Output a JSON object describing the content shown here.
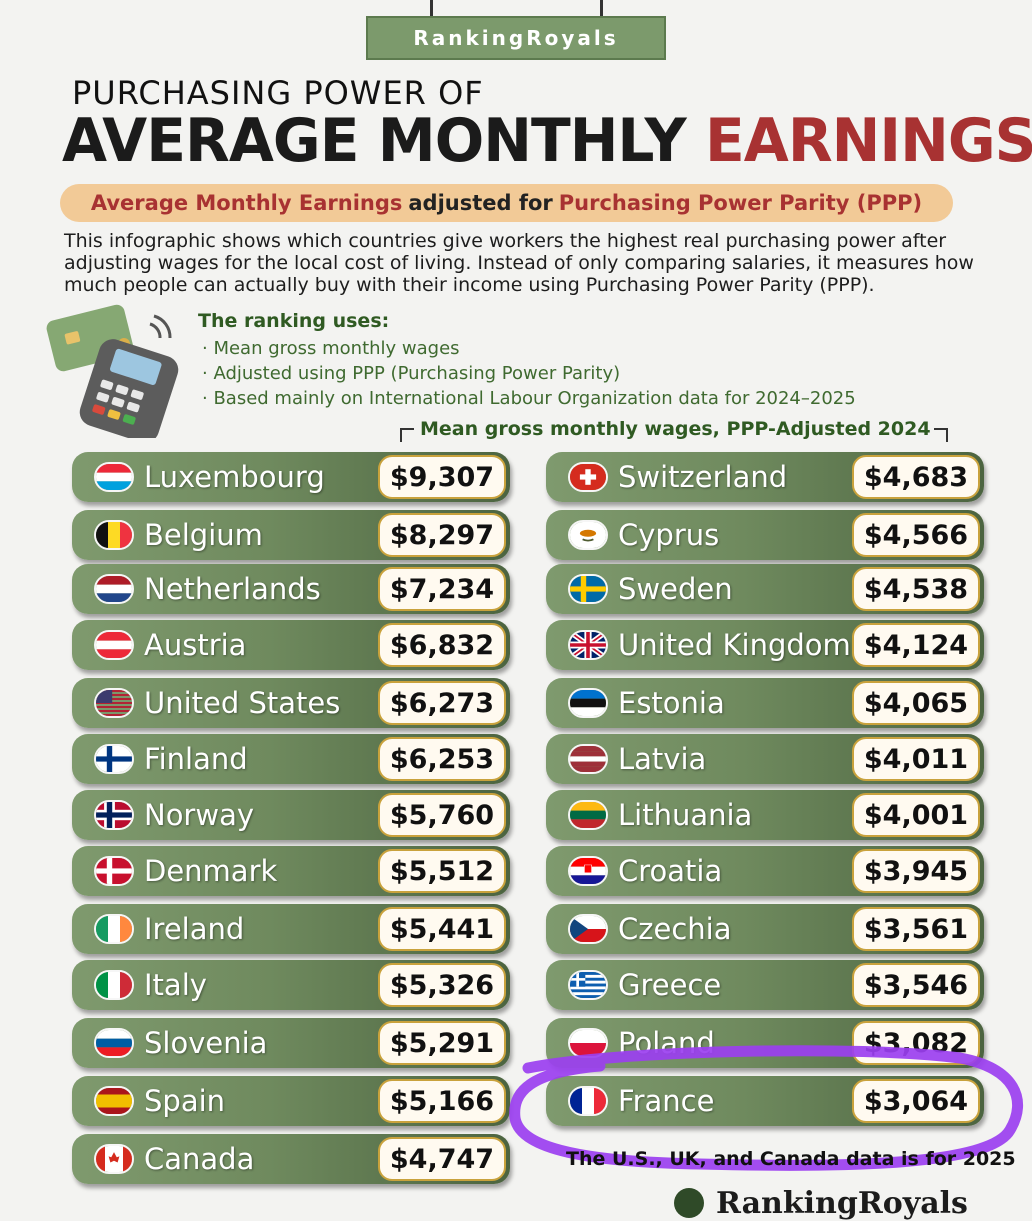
{
  "brand": "RankingRoyals",
  "kicker": "PURCHASING POWER OF",
  "title": {
    "part1": "AVERAGE MONTHLY",
    "part2": "EARNINGS"
  },
  "subtitle": {
    "a": "Average Monthly Earnings",
    "b": "adjusted for",
    "c": "Purchasing Power Parity (PPP)"
  },
  "description": "This infographic shows which countries give workers the highest real purchasing power after adjusting wages for the local cost of living. Instead of only comparing salaries, it measures how much people can actually buy with their income using Purchasing Power Parity (PPP).",
  "uses": {
    "heading": "The ranking uses:",
    "items": [
      "· Mean gross monthly wages",
      "· Adjusted using PPP (Purchasing Power Parity)",
      "· Based mainly on International Labour Organization data for 2024–2025"
    ]
  },
  "footnote": "The U.S., UK, and Canada data is for 2025",
  "footer_brand": "RankingRoyals",
  "colors": {
    "accent_green": "#7c9a6c",
    "title_red": "#a83232",
    "highlight_purple": "#9b3ff0"
  },
  "chart_data": {
    "type": "table",
    "title": "Mean gross monthly wages, PPP-Adjusted 2024",
    "highlighted": "France",
    "rows": [
      {
        "country": "Luxembourg",
        "value": 9307,
        "label": "$9,307",
        "flag": "luxembourg-flag-icon"
      },
      {
        "country": "Belgium",
        "value": 8297,
        "label": "$8,297",
        "flag": "belgium-flag-icon"
      },
      {
        "country": "Netherlands",
        "value": 7234,
        "label": "$7,234",
        "flag": "netherlands-flag-icon"
      },
      {
        "country": "Austria",
        "value": 6832,
        "label": "$6,832",
        "flag": "austria-flag-icon"
      },
      {
        "country": "United States",
        "value": 6273,
        "label": "$6,273",
        "flag": "united-states-flag-icon"
      },
      {
        "country": "Finland",
        "value": 6253,
        "label": "$6,253",
        "flag": "finland-flag-icon"
      },
      {
        "country": "Norway",
        "value": 5760,
        "label": "$5,760",
        "flag": "norway-flag-icon"
      },
      {
        "country": "Denmark",
        "value": 5512,
        "label": "$5,512",
        "flag": "denmark-flag-icon"
      },
      {
        "country": "Ireland",
        "value": 5441,
        "label": "$5,441",
        "flag": "ireland-flag-icon"
      },
      {
        "country": "Italy",
        "value": 5326,
        "label": "$5,326",
        "flag": "italy-flag-icon"
      },
      {
        "country": "Slovenia",
        "value": 5291,
        "label": "$5,291",
        "flag": "slovenia-flag-icon"
      },
      {
        "country": "Spain",
        "value": 5166,
        "label": "$5,166",
        "flag": "spain-flag-icon"
      },
      {
        "country": "Canada",
        "value": 4747,
        "label": "$4,747",
        "flag": "canada-flag-icon"
      },
      {
        "country": "Switzerland",
        "value": 4683,
        "label": "$4,683",
        "flag": "switzerland-flag-icon"
      },
      {
        "country": "Cyprus",
        "value": 4566,
        "label": "$4,566",
        "flag": "cyprus-flag-icon"
      },
      {
        "country": "Sweden",
        "value": 4538,
        "label": "$4,538",
        "flag": "sweden-flag-icon"
      },
      {
        "country": "United Kingdom",
        "value": 4124,
        "label": "$4,124",
        "flag": "united-kingdom-flag-icon"
      },
      {
        "country": "Estonia",
        "value": 4065,
        "label": "$4,065",
        "flag": "estonia-flag-icon"
      },
      {
        "country": "Latvia",
        "value": 4011,
        "label": "$4,011",
        "flag": "latvia-flag-icon"
      },
      {
        "country": "Lithuania",
        "value": 4001,
        "label": "$4,001",
        "flag": "lithuania-flag-icon"
      },
      {
        "country": "Croatia",
        "value": 3945,
        "label": "$3,945",
        "flag": "croatia-flag-icon"
      },
      {
        "country": "Czechia",
        "value": 3561,
        "label": "$3,561",
        "flag": "czechia-flag-icon"
      },
      {
        "country": "Greece",
        "value": 3546,
        "label": "$3,546",
        "flag": "greece-flag-icon"
      },
      {
        "country": "Poland",
        "value": 3082,
        "label": "$3,082",
        "flag": "poland-flag-icon"
      },
      {
        "country": "France",
        "value": 3064,
        "label": "$3,064",
        "flag": "france-flag-icon"
      }
    ]
  }
}
